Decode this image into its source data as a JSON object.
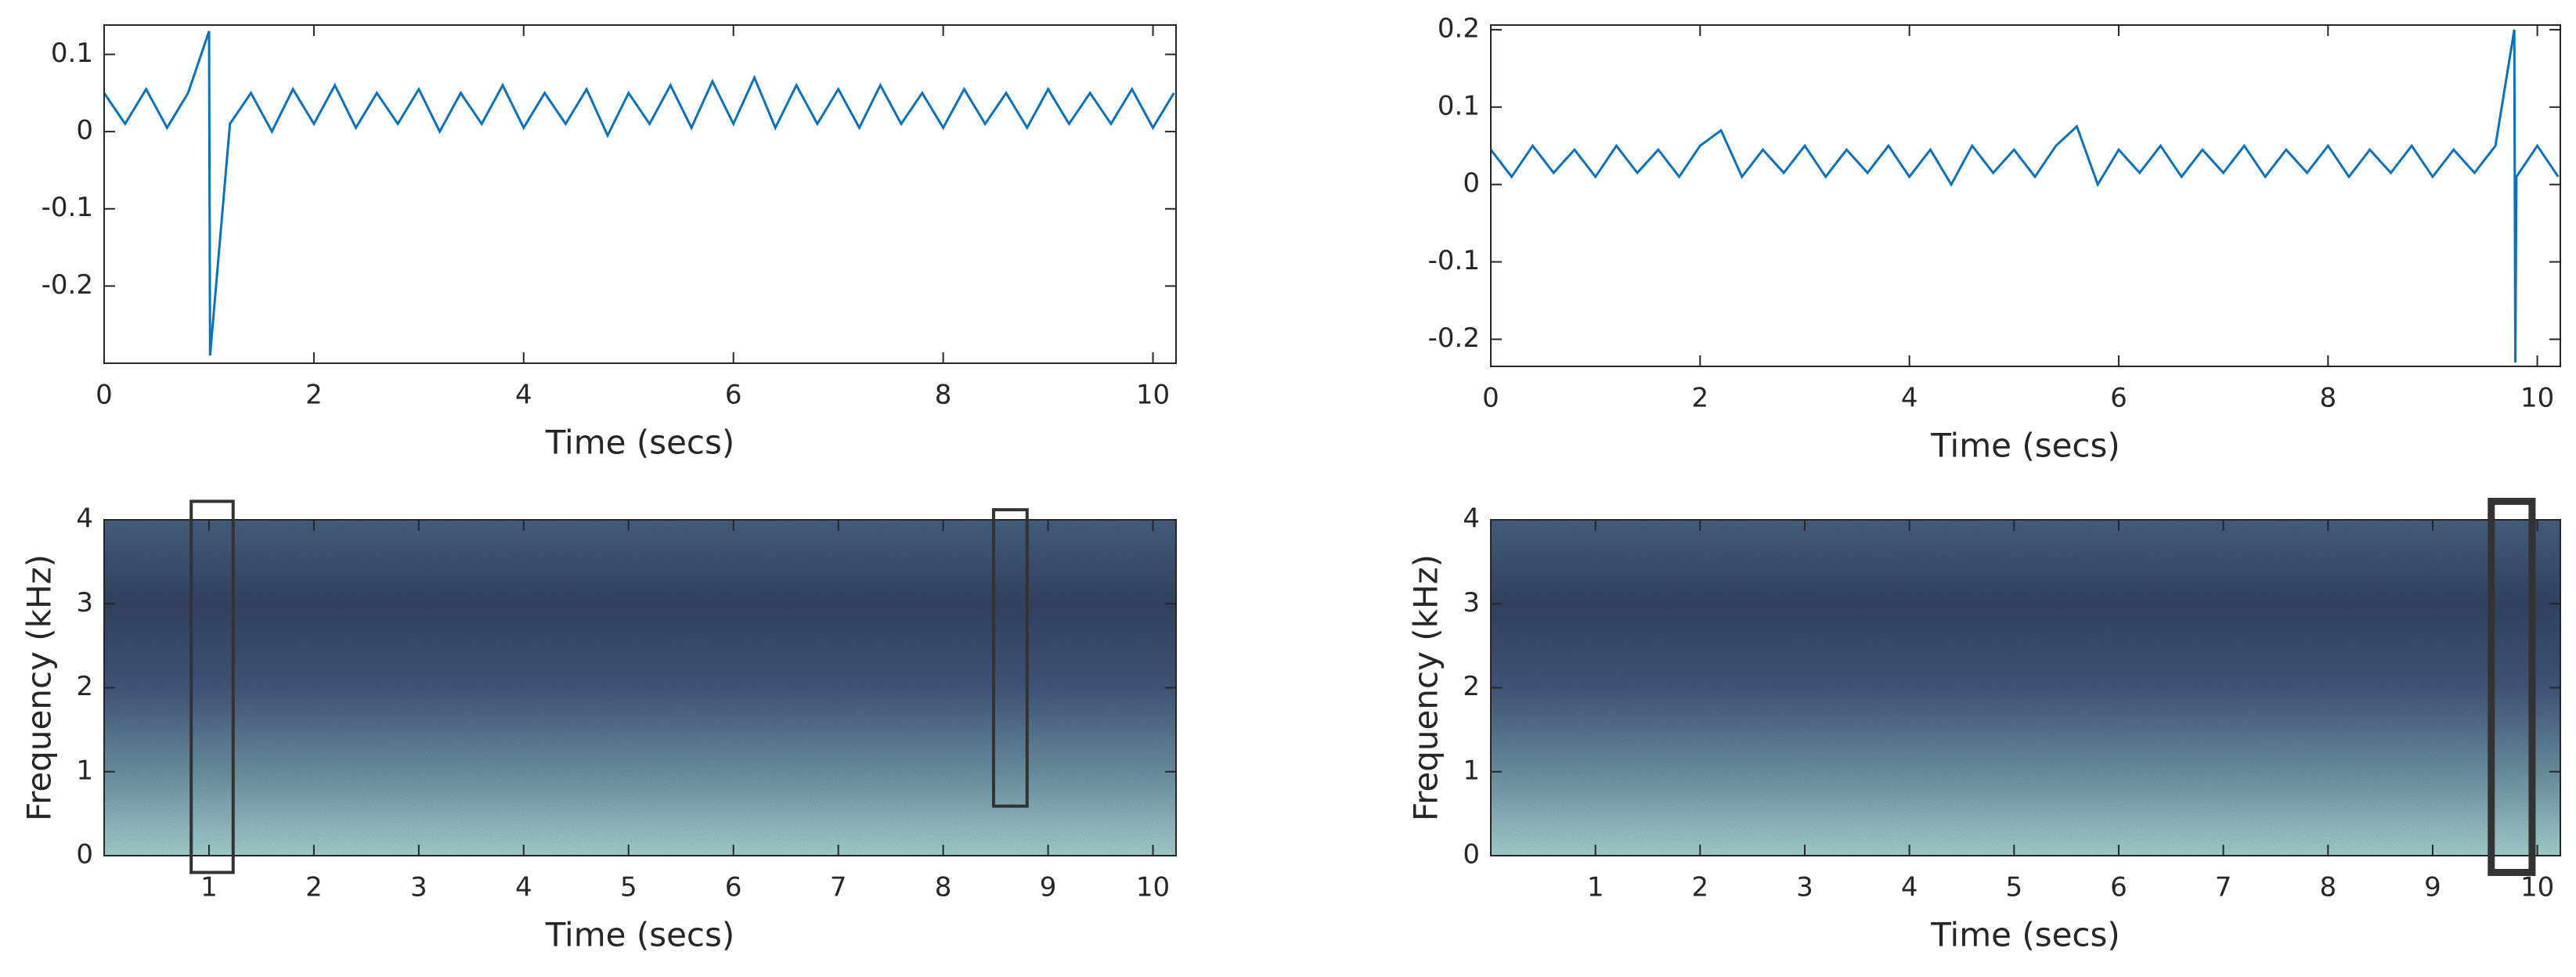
{
  "chart_data": [
    {
      "type": "line",
      "xlabel": "Time (secs)",
      "color": "#0a72bd",
      "xlim": [
        0,
        10.22
      ],
      "ylim": [
        -0.3,
        0.138
      ],
      "xticks": [
        0,
        2,
        4,
        6,
        8,
        10
      ],
      "yticks": [
        -0.2,
        -0.1,
        0,
        0.1
      ],
      "x": [
        0,
        0.2,
        0.4,
        0.6,
        0.8,
        1,
        1.01,
        1.2,
        1.4,
        1.6,
        1.8,
        2,
        2.2,
        2.4,
        2.6,
        2.8,
        3,
        3.2,
        3.4,
        3.6,
        3.8,
        4,
        4.2,
        4.4,
        4.6,
        4.8,
        5,
        5.2,
        5.4,
        5.6,
        5.8,
        6,
        6.2,
        6.4,
        6.6,
        6.8,
        7,
        7.2,
        7.4,
        7.6,
        7.8,
        8,
        8.2,
        8.4,
        8.6,
        8.8,
        9,
        9.2,
        9.4,
        9.6,
        9.8,
        10,
        10.2
      ],
      "values": [
        0.05,
        0.01,
        0.055,
        0.005,
        0.05,
        0.13,
        -0.29,
        0.01,
        0.05,
        0.0,
        0.055,
        0.01,
        0.06,
        0.005,
        0.05,
        0.01,
        0.055,
        0.0,
        0.05,
        0.01,
        0.06,
        0.005,
        0.05,
        0.01,
        0.055,
        -0.005,
        0.05,
        0.01,
        0.06,
        0.005,
        0.065,
        0.01,
        0.07,
        0.005,
        0.06,
        0.01,
        0.055,
        0.005,
        0.06,
        0.01,
        0.05,
        0.005,
        0.055,
        0.01,
        0.05,
        0.005,
        0.055,
        0.01,
        0.05,
        0.01,
        0.055,
        0.005,
        0.05
      ]
    },
    {
      "type": "spectrogram",
      "xlabel": "Time (secs)",
      "ylabel": "Frequency (kHz)",
      "xlim": [
        0,
        10.22
      ],
      "ylim": [
        0,
        4
      ],
      "xticks": [
        1,
        2,
        3,
        4,
        5,
        6,
        7,
        8,
        9,
        10
      ],
      "yticks": [
        0,
        1,
        2,
        3,
        4
      ],
      "colormap": [
        "#aad6d4",
        "#6f93a3",
        "#45557a",
        "#36405f",
        "#4a5f80"
      ],
      "box_color": "#333333",
      "boxes": [
        {
          "x": [
            0.83,
            1.23
          ],
          "y": [
            -0.2,
            4.22
          ]
        },
        {
          "x": [
            8.48,
            8.8
          ],
          "y": [
            0.59,
            4.12
          ]
        }
      ]
    },
    {
      "type": "line",
      "xlabel": "Time (secs)",
      "color": "#0a72bd",
      "xlim": [
        0,
        10.22
      ],
      "ylim": [
        -0.235,
        0.206
      ],
      "xticks": [
        0,
        2,
        4,
        6,
        8,
        10
      ],
      "yticks": [
        -0.2,
        -0.1,
        0,
        0.1,
        0.2
      ],
      "x": [
        0,
        0.2,
        0.4,
        0.6,
        0.8,
        1,
        1.2,
        1.4,
        1.6,
        1.8,
        2,
        2.2,
        2.4,
        2.6,
        2.8,
        3,
        3.2,
        3.4,
        3.6,
        3.8,
        4,
        4.2,
        4.4,
        4.6,
        4.8,
        5,
        5.2,
        5.4,
        5.6,
        5.8,
        6,
        6.2,
        6.4,
        6.6,
        6.8,
        7,
        7.2,
        7.4,
        7.6,
        7.8,
        8,
        8.2,
        8.4,
        8.6,
        8.8,
        9,
        9.2,
        9.4,
        9.6,
        9.78,
        9.79,
        9.8,
        10,
        10.2
      ],
      "values": [
        0.045,
        0.01,
        0.05,
        0.015,
        0.045,
        0.01,
        0.05,
        0.015,
        0.045,
        0.01,
        0.05,
        0.07,
        0.01,
        0.045,
        0.015,
        0.05,
        0.01,
        0.045,
        0.015,
        0.05,
        0.01,
        0.045,
        0.0,
        0.05,
        0.015,
        0.045,
        0.01,
        0.05,
        0.075,
        0.0,
        0.045,
        0.015,
        0.05,
        0.01,
        0.045,
        0.015,
        0.05,
        0.01,
        0.045,
        0.015,
        0.05,
        0.01,
        0.045,
        0.015,
        0.05,
        0.01,
        0.045,
        0.015,
        0.05,
        0.2,
        -0.23,
        0.01,
        0.05,
        0.01
      ]
    },
    {
      "type": "spectrogram",
      "xlabel": "Time (secs)",
      "ylabel": "Frequency (kHz)",
      "xlim": [
        0,
        10.22
      ],
      "ylim": [
        0,
        4
      ],
      "xticks": [
        1,
        2,
        3,
        4,
        5,
        6,
        7,
        8,
        9,
        10
      ],
      "yticks": [
        0,
        1,
        2,
        3,
        4
      ],
      "colormap": [
        "#aad6d4",
        "#6f93a3",
        "#45557a",
        "#36405f",
        "#4a5f80"
      ],
      "box_color": "#333333",
      "boxes": [
        {
          "x": [
            9.56,
            9.95
          ],
          "y": [
            -0.2,
            4.22
          ]
        }
      ]
    }
  ]
}
